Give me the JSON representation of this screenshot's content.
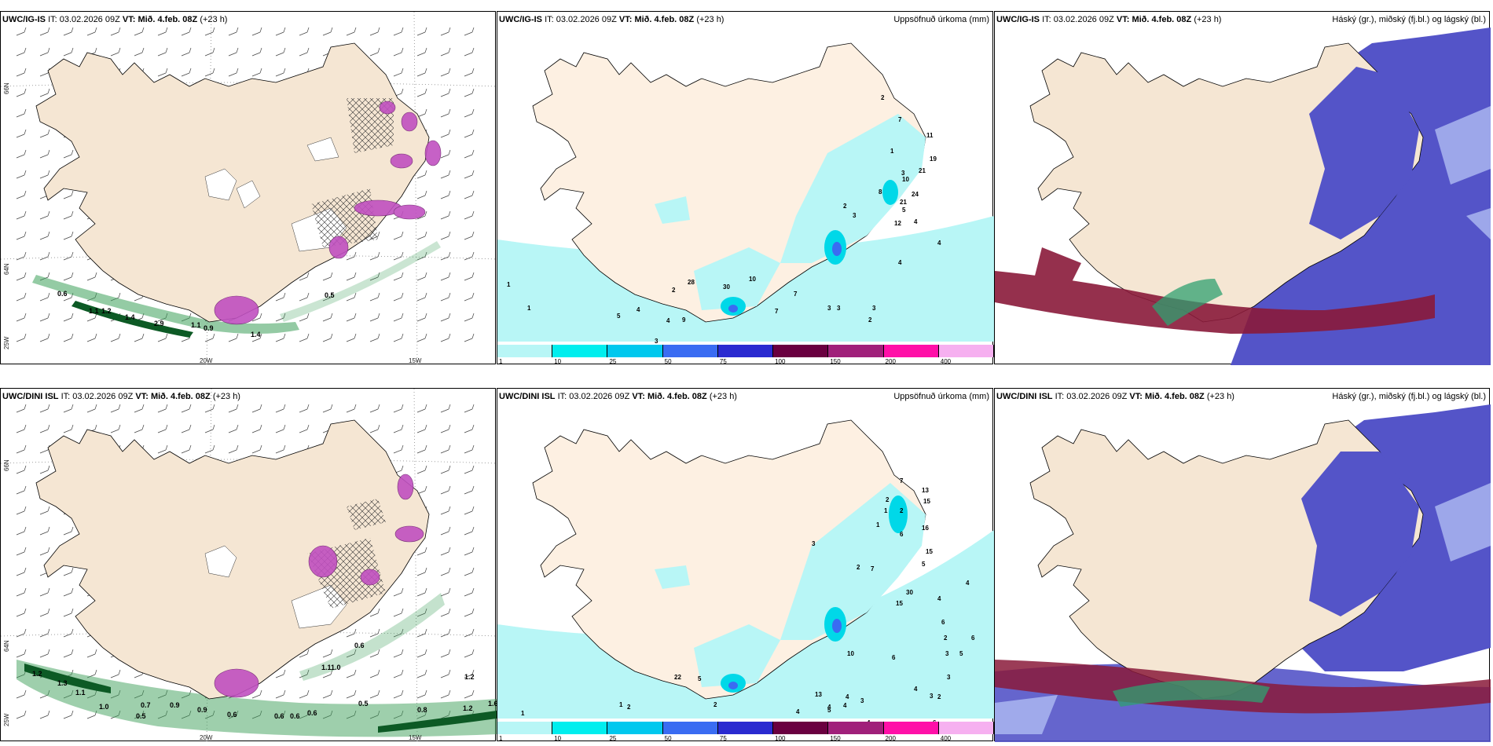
{
  "panels": {
    "ig_wind": {
      "model": "UWC/IG-IS",
      "it_label": "IT:",
      "it": "03.02.2026 09Z",
      "vt_label": "VT:",
      "vt": "Mið. 4.feb. 08Z",
      "lead": "(+23 h)",
      "right_title": ""
    },
    "ig_precip": {
      "model": "UWC/IG-IS",
      "it_label": "IT:",
      "it": "03.02.2026 09Z",
      "vt_label": "VT:",
      "vt": "Mið. 4.feb. 08Z",
      "lead": "(+23 h)",
      "right_title": "Uppsöfnuð úrkoma (mm)"
    },
    "ig_cloud": {
      "model": "UWC/IG-IS",
      "it_label": "IT:",
      "it": "03.02.2026 09Z",
      "vt_label": "VT:",
      "vt": "Mið. 4.feb. 08Z",
      "lead": "(+23 h)",
      "right_title": "Háský (gr.), miðský (fj.bl.) og lágský (bl.)"
    },
    "dini_wind": {
      "model": "UWC/DINI ISL",
      "it_label": "IT:",
      "it": "03.02.2026 09Z",
      "vt_label": "VT:",
      "vt": "Mið. 4.feb. 08Z",
      "lead": "(+23 h)",
      "right_title": ""
    },
    "dini_precip": {
      "model": "UWC/DINI ISL",
      "it_label": "IT:",
      "it": "03.02.2026 09Z",
      "vt_label": "VT:",
      "vt": "Mið. 4.feb. 08Z",
      "lead": "(+23 h)",
      "right_title": "Uppsöfnuð úrkoma (mm)"
    },
    "dini_cloud": {
      "model": "UWC/DINI ISL",
      "it_label": "IT:",
      "it": "03.02.2026 09Z",
      "vt_label": "VT:",
      "vt": "Mið. 4.feb. 08Z",
      "lead": "(+23 h)",
      "right_title": "Háský (gr.), miðský (fj.bl.) og lágský (bl.)"
    }
  },
  "axes": {
    "lon_20w": "20W",
    "lon_15w": "15W",
    "lon_25w": "25W",
    "lat_66n": "66N",
    "lat_64n": "64N"
  },
  "colorbar": {
    "labels": [
      "1",
      "10",
      "25",
      "50",
      "75",
      "100",
      "150",
      "200",
      "400"
    ],
    "colors": [
      "#b8f6f6",
      "#00eeee",
      "#00c8ee",
      "#3a6cf2",
      "#2a2ad0",
      "#6a0040",
      "#a0207a",
      "#ff10a8",
      "#f6b0f0"
    ]
  },
  "colors": {
    "land": "#f5e6d3",
    "land_precip": "#fdf0e2",
    "sea": "#ffffff",
    "precip_light": "#b8f6f6",
    "precip_mid": "#00d8e8",
    "cloud_mid": "#5454c8",
    "cloud_high": "#8a1a3a",
    "cloud_low": "#2fa070",
    "green_band": "#3da05a",
    "purple": "#c050c0"
  },
  "ig_wind_values": [
    "0.6",
    "1.1",
    "1.2",
    "1.4",
    "2.9",
    "1.1",
    "0.9",
    "1.4",
    "0.5"
  ],
  "dini_wind_values": [
    "1.2",
    "1.3",
    "1.1",
    "1.0",
    "0.7",
    "0.5",
    "0.9",
    "0.9",
    "0.6",
    "0.6",
    "1.1",
    "1.0",
    "0.5",
    "0.8",
    "1.2",
    "1.6",
    "1.2",
    "0.6",
    "0.6",
    "0.6"
  ],
  "ig_precip_values": [
    "2",
    "7",
    "11",
    "1",
    "19",
    "21",
    "3",
    "10",
    "8",
    "24",
    "21",
    "5",
    "3",
    "2",
    "12",
    "4",
    "4",
    "4",
    "2",
    "28",
    "30",
    "10",
    "7",
    "7",
    "3",
    "3",
    "3",
    "5",
    "4",
    "4",
    "9",
    "2",
    "1",
    "1",
    "3"
  ],
  "dini_precip_values": [
    "7",
    "2",
    "1",
    "2",
    "13",
    "15",
    "1",
    "6",
    "16",
    "2",
    "15",
    "7",
    "5",
    "3",
    "30",
    "15",
    "4",
    "4",
    "6",
    "2",
    "3",
    "6",
    "5",
    "22",
    "5",
    "10",
    "6",
    "4",
    "3",
    "3",
    "2",
    "4",
    "3",
    "13",
    "4",
    "4",
    "6",
    "4",
    "5",
    "2",
    "4",
    "1",
    "1",
    "2",
    "2",
    "4"
  ]
}
